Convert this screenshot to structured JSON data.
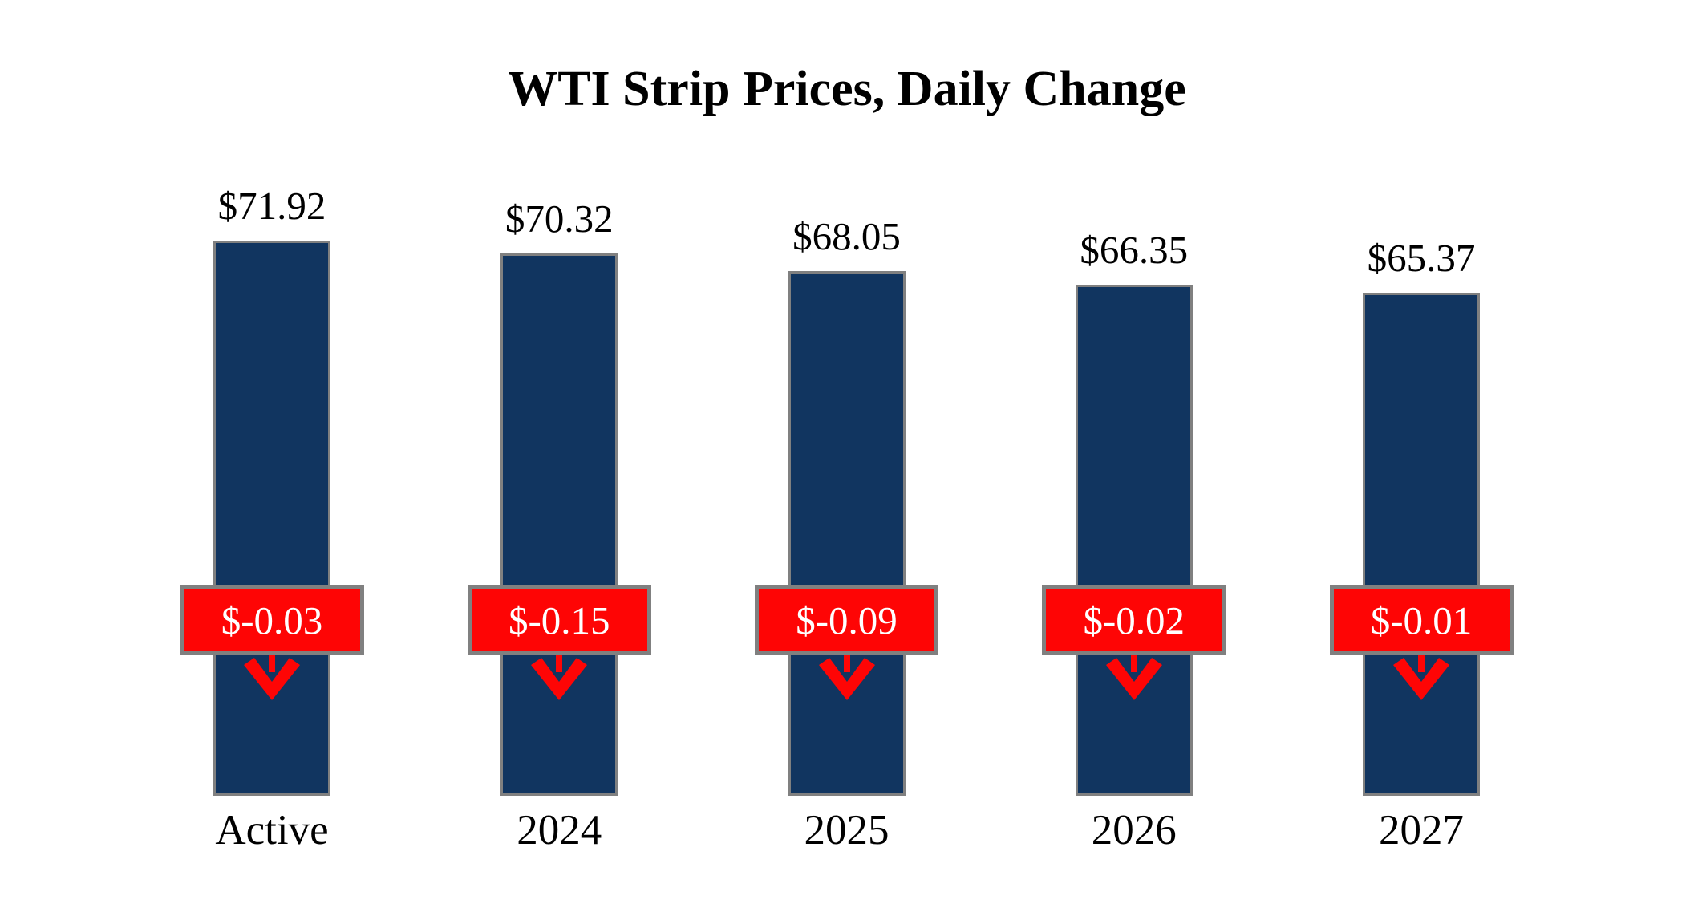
{
  "chart_data": {
    "type": "bar",
    "title": "WTI Strip Prices, Daily Change",
    "categories": [
      "Active",
      "2024",
      "2025",
      "2026",
      "2027"
    ],
    "series": [
      {
        "name": "WTI Strip Price",
        "values": [
          71.92,
          70.32,
          68.05,
          66.35,
          65.37
        ]
      },
      {
        "name": "Daily Change",
        "values": [
          -0.03,
          -0.15,
          -0.09,
          -0.02,
          -0.01
        ]
      }
    ],
    "value_labels": [
      "$71.92",
      "$70.32",
      "$68.05",
      "$66.35",
      "$65.37"
    ],
    "change_labels": [
      "$-0.03",
      "$-0.15",
      "$-0.09",
      "$-0.02",
      "$-0.01"
    ],
    "arrow_direction": "down",
    "legend": "none",
    "grid": "off",
    "axes_visible": false,
    "colors": {
      "bar_fill": "#113560",
      "bar_border": "#808080",
      "change_box_fill": "#FE0505",
      "change_box_border": "#808080",
      "change_text": "#FFFFFF",
      "arrow": "#FE0505",
      "text": "#000000",
      "background": "#FFFFFF"
    }
  }
}
